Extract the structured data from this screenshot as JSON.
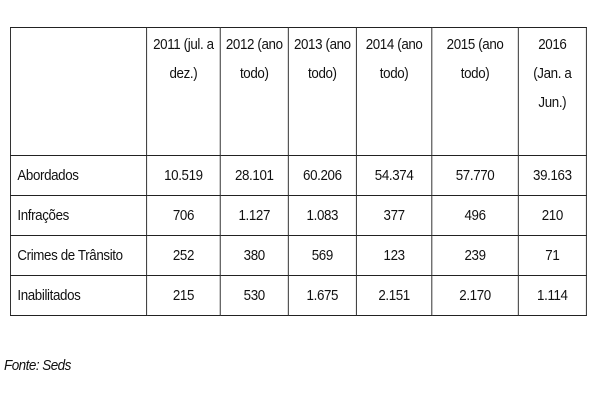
{
  "table": {
    "corner_label": "",
    "columns": [
      [
        "2011 (jul. a",
        "dez.)"
      ],
      [
        "2012 (ano",
        "todo)"
      ],
      [
        "2013 (ano",
        "todo)"
      ],
      [
        "2014 (ano",
        "todo)"
      ],
      [
        "2015 (ano",
        "todo)"
      ],
      [
        "2016",
        "(Jan. a",
        "Jun.)"
      ]
    ],
    "rows": [
      {
        "label": "Abordados",
        "values": [
          "10.519",
          "28.101",
          "60.206",
          "54.374",
          "57.770",
          "39.163"
        ]
      },
      {
        "label": "Infrações",
        "values": [
          "706",
          "1.127",
          "1.083",
          "377",
          "496",
          "210"
        ]
      },
      {
        "label": "Crimes de Trânsito",
        "values": [
          "252",
          "380",
          "569",
          "123",
          "239",
          "71"
        ]
      },
      {
        "label": "Inabilitados",
        "values": [
          "215",
          "530",
          "1.675",
          "2.151",
          "2.170",
          "1.114"
        ]
      }
    ]
  },
  "source": "Fonte: Seds"
}
